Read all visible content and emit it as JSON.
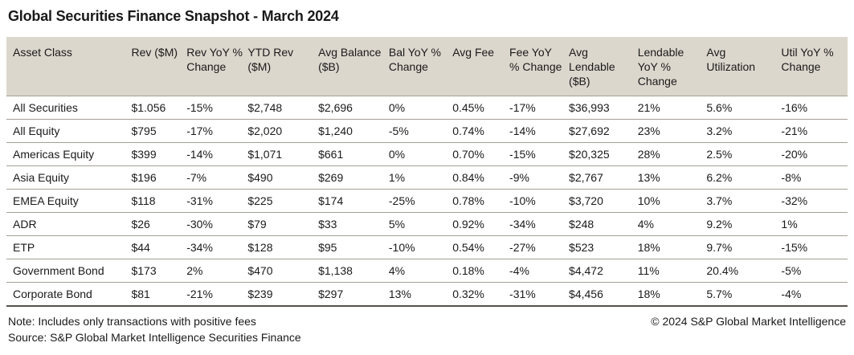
{
  "title": "Global Securities Finance Snapshot - March 2024",
  "table": {
    "headers": [
      "Asset Class",
      "Rev ($M)",
      "Rev YoY % Change",
      "YTD Rev ($M)",
      "Avg Balance ($B)",
      "Bal YoY % Change",
      "Avg Fee",
      "Fee YoY % Change",
      "Avg Lendable ($B)",
      "Lendable YoY % Change",
      "Avg Utilization",
      "Util YoY % Change"
    ],
    "rows": [
      [
        "All Securities",
        "$1.056",
        "-15%",
        "$2,748",
        "$2,696",
        "0%",
        "0.45%",
        "-17%",
        "$36,993",
        "21%",
        "5.6%",
        "-16%"
      ],
      [
        "All Equity",
        "$795",
        "-17%",
        "$2,020",
        "$1,240",
        "-5%",
        "0.74%",
        "-14%",
        "$27,692",
        "23%",
        "3.2%",
        "-21%"
      ],
      [
        "Americas Equity",
        "$399",
        "-14%",
        "$1,071",
        "$661",
        "0%",
        "0.70%",
        "-15%",
        "$20,325",
        "28%",
        "2.5%",
        "-20%"
      ],
      [
        "Asia Equity",
        "$196",
        "-7%",
        "$490",
        "$269",
        "1%",
        "0.84%",
        "-9%",
        "$2,767",
        "13%",
        "6.2%",
        "-8%"
      ],
      [
        "EMEA Equity",
        "$118",
        "-31%",
        "$225",
        "$174",
        "-25%",
        "0.78%",
        "-10%",
        "$3,720",
        "10%",
        "3.7%",
        "-32%"
      ],
      [
        "ADR",
        "$26",
        "-30%",
        "$79",
        "$33",
        "5%",
        "0.92%",
        "-34%",
        "$248",
        "4%",
        "9.2%",
        "1%"
      ],
      [
        "ETP",
        "$44",
        "-34%",
        "$128",
        "$95",
        "-10%",
        "0.54%",
        "-27%",
        "$523",
        "18%",
        "9.7%",
        "-15%"
      ],
      [
        "Government Bond",
        "$173",
        "2%",
        "$470",
        "$1,138",
        "4%",
        "0.18%",
        "-4%",
        "$4,472",
        "11%",
        "20.4%",
        "-5%"
      ],
      [
        "Corporate Bond",
        "$81",
        "-21%",
        "$239",
        "$297",
        "13%",
        "0.32%",
        "-31%",
        "$4,456",
        "18%",
        "5.7%",
        "-4%"
      ]
    ]
  },
  "footer": {
    "note": "Note: Includes only transactions with positive fees",
    "source": "Source: S&P Global Market Intelligence Securities Finance",
    "copyright": "© 2024 S&P Global Market Intelligence"
  },
  "colors": {
    "header_bg": "#dcd7cd",
    "row_border": "#a39f93",
    "table_bottom_border": "#55524a",
    "text": "#1a1a1a"
  }
}
